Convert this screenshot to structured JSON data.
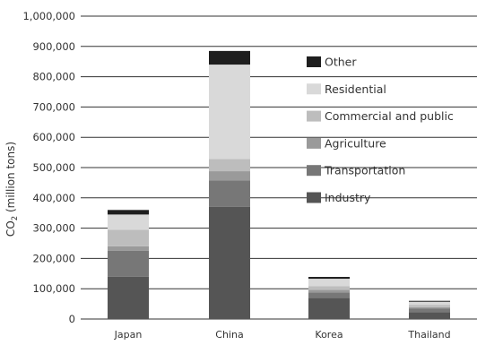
{
  "chart_data": {
    "type": "bar",
    "stacked": true,
    "categories": [
      "Japan",
      "China",
      "Korea",
      "Thailand"
    ],
    "ylabel": "CO2 (million tons)",
    "ylabel_main": "CO",
    "ylabel_sub": "2",
    "ylabel_rest": " (million tons)",
    "ylim": [
      0,
      1000000
    ],
    "yticks": [
      0,
      100000,
      200000,
      300000,
      400000,
      500000,
      600000,
      700000,
      800000,
      900000,
      1000000
    ],
    "ytick_labels": [
      "0",
      "100,000",
      "200,000",
      "300,000",
      "400,000",
      "500,000",
      "600,000",
      "700,000",
      "800,000",
      "900,000",
      "1,000,000"
    ],
    "grid": true,
    "legend_position": "right",
    "series": [
      {
        "name": "Industry",
        "color": "#555555",
        "values": [
          140000,
          370000,
          70000,
          22000
        ]
      },
      {
        "name": "Transportation",
        "color": "#777777",
        "values": [
          85000,
          88000,
          18000,
          12000
        ]
      },
      {
        "name": "Agriculture",
        "color": "#9a9a9a",
        "values": [
          15000,
          30000,
          8000,
          5000
        ]
      },
      {
        "name": "Commercial and public",
        "color": "#bdbdbd",
        "values": [
          55000,
          40000,
          12000,
          8000
        ]
      },
      {
        "name": "Residential",
        "color": "#d9d9d9",
        "values": [
          50000,
          312000,
          25000,
          10000
        ]
      },
      {
        "name": "Other",
        "color": "#1e1e1e",
        "values": [
          15000,
          45000,
          6000,
          3000
        ]
      }
    ]
  }
}
